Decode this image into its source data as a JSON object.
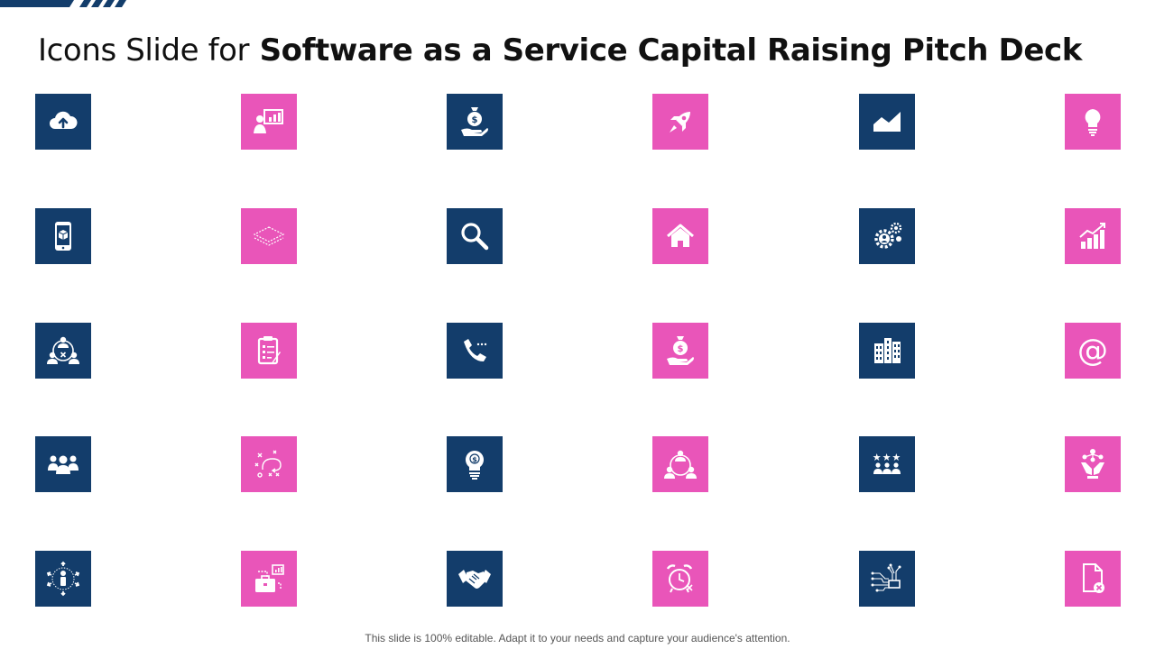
{
  "slide": {
    "title_prefix": "Icons Slide for",
    "title_main": "Software as a Service Capital Raising Pitch Deck",
    "footer": "This slide is 100% editable. Adapt it to your needs and capture your audience's attention."
  },
  "colors": {
    "navy": "#133d6b",
    "pink": "#e955b9",
    "title": "#111111"
  },
  "icons": [
    {
      "name": "cloud-upload-icon",
      "color": "navy"
    },
    {
      "name": "presentation-icon",
      "color": "pink"
    },
    {
      "name": "money-bag-hand-icon",
      "color": "navy"
    },
    {
      "name": "rocket-icon",
      "color": "pink"
    },
    {
      "name": "area-chart-icon",
      "color": "navy"
    },
    {
      "name": "lightbulb-icon",
      "color": "pink"
    },
    {
      "name": "mobile-package-icon",
      "color": "navy"
    },
    {
      "name": "layers-icon",
      "color": "pink"
    },
    {
      "name": "search-icon",
      "color": "navy"
    },
    {
      "name": "home-icon",
      "color": "pink"
    },
    {
      "name": "user-gears-icon",
      "color": "navy"
    },
    {
      "name": "growth-bar-chart-icon",
      "color": "pink"
    },
    {
      "name": "team-conflict-icon",
      "color": "navy"
    },
    {
      "name": "clipboard-checklist-icon",
      "color": "pink"
    },
    {
      "name": "phone-call-icon",
      "color": "navy"
    },
    {
      "name": "money-bag-hand-icon",
      "color": "pink"
    },
    {
      "name": "buildings-icon",
      "color": "navy"
    },
    {
      "name": "at-sign-icon",
      "color": "pink"
    },
    {
      "name": "team-icon",
      "color": "navy"
    },
    {
      "name": "strategy-plan-icon",
      "color": "pink"
    },
    {
      "name": "dollar-bulb-icon",
      "color": "navy"
    },
    {
      "name": "network-people-icon",
      "color": "pink"
    },
    {
      "name": "star-team-icon",
      "color": "navy"
    },
    {
      "name": "hand-network-icon",
      "color": "pink"
    },
    {
      "name": "person-arrows-icon",
      "color": "navy"
    },
    {
      "name": "briefcase-chart-icon",
      "color": "pink"
    },
    {
      "name": "handshake-icon",
      "color": "navy"
    },
    {
      "name": "alarm-clock-icon",
      "color": "pink"
    },
    {
      "name": "circuit-chip-icon",
      "color": "navy"
    },
    {
      "name": "file-remove-icon",
      "color": "pink"
    }
  ]
}
